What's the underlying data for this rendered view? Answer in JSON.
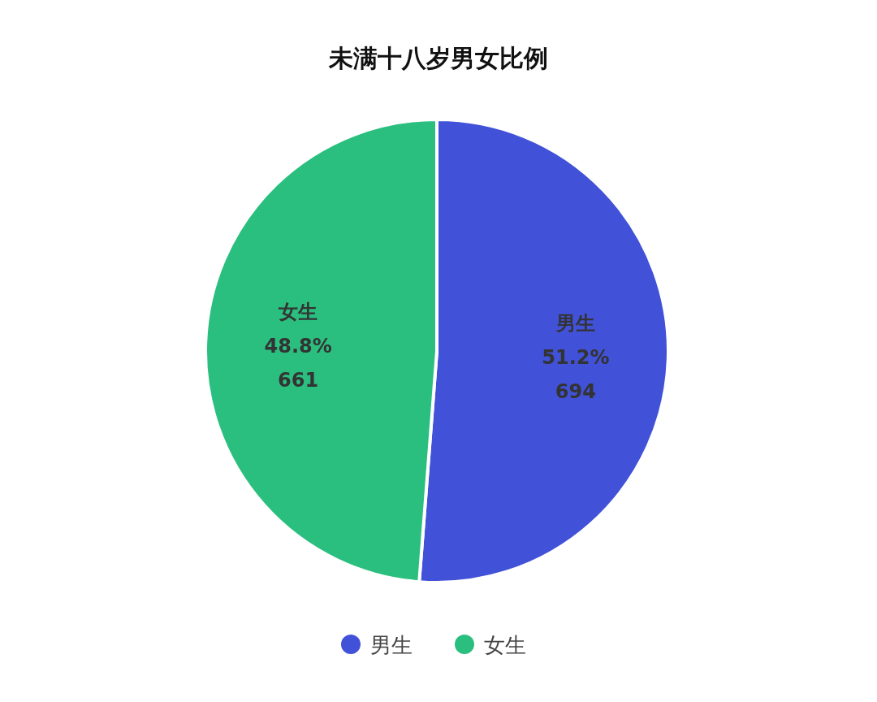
{
  "chart_data": {
    "type": "pie",
    "title": "未满十八岁男女比例",
    "categories": [
      "男生",
      "女生"
    ],
    "values": [
      694,
      661
    ],
    "colors": [
      "#4152d8",
      "#2bbf7f"
    ],
    "value_labels": [
      "51.2%\n694",
      "48.8%\n661"
    ],
    "legend": "bottom"
  }
}
